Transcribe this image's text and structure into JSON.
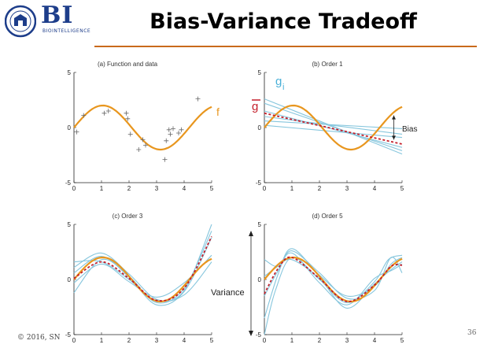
{
  "header": {
    "logo_text": "BI",
    "logo_sub": "BIOINTELLIGENCE",
    "title": "Bias-Variance Tradeoff"
  },
  "footer": {
    "copyright": "© 2016, SN",
    "page_number": "36"
  },
  "colors": {
    "true_function": "#e8961e",
    "fits": "#86c6dd",
    "mean_fit": "#c41e2a",
    "rule": "#c96a1b",
    "logo": "#1d3d8a"
  },
  "annotations": {
    "f": "f",
    "g_i": "g",
    "g_i_sub": "i",
    "g_bar": "g",
    "bias": "Bias",
    "variance": "Variance"
  },
  "chart_data": [
    {
      "type": "scatter",
      "title": "(a) Function and data",
      "xlim": [
        0,
        5
      ],
      "ylim": [
        -5,
        5
      ],
      "xticks": [
        "0",
        "1",
        "2",
        "3",
        "4",
        "5"
      ],
      "yticks": [
        "5",
        "0",
        "-5"
      ],
      "true_function": "2*sin(1.5*x)",
      "points": [
        [
          0.1,
          -0.4
        ],
        [
          0.35,
          1.1
        ],
        [
          1.1,
          1.3
        ],
        [
          1.25,
          1.5
        ],
        [
          1.9,
          1.3
        ],
        [
          1.95,
          0.8
        ],
        [
          2.05,
          -0.6
        ],
        [
          2.35,
          -2.0
        ],
        [
          2.5,
          -1.1
        ],
        [
          2.6,
          -1.6
        ],
        [
          3.3,
          -2.9
        ],
        [
          3.35,
          -1.2
        ],
        [
          3.45,
          -0.2
        ],
        [
          3.5,
          -0.6
        ],
        [
          3.6,
          -0.1
        ],
        [
          3.8,
          -0.5
        ],
        [
          3.9,
          -0.2
        ],
        [
          4.5,
          2.6
        ]
      ]
    },
    {
      "type": "line",
      "title": "(b) Order 1",
      "xlim": [
        0,
        5
      ],
      "ylim": [
        -5,
        5
      ],
      "xticks": [
        "0",
        "1",
        "2",
        "3",
        "4",
        "5"
      ],
      "yticks": [
        "5",
        "0",
        "-5"
      ],
      "fits": [
        [
          [
            0,
            2.6
          ],
          [
            5,
            -2.4
          ]
        ],
        [
          [
            0,
            1.5
          ],
          [
            5,
            -1.8
          ]
        ],
        [
          [
            0,
            1.0
          ],
          [
            5,
            -0.6
          ]
        ],
        [
          [
            0,
            0.6
          ],
          [
            5,
            -0.1
          ]
        ],
        [
          [
            0,
            2.2
          ],
          [
            5,
            -2.1
          ]
        ],
        [
          [
            0,
            0.2
          ],
          [
            5,
            -0.9
          ]
        ]
      ],
      "mean_fit": [
        [
          0,
          1.3
        ],
        [
          5,
          -1.5
        ]
      ]
    },
    {
      "type": "line",
      "title": "(c) Order 3",
      "xlim": [
        0,
        5
      ],
      "ylim": [
        -5,
        5
      ],
      "xticks": [
        "0",
        "1",
        "2",
        "3",
        "4",
        "5"
      ],
      "yticks": [
        "5",
        "0",
        "-5"
      ],
      "fits": [
        [
          [
            0,
            1.6
          ],
          [
            1,
            1.6
          ],
          [
            2,
            0
          ],
          [
            3,
            -1.9
          ],
          [
            4,
            -1.0
          ],
          [
            5,
            5.0
          ]
        ],
        [
          [
            0,
            -1.2
          ],
          [
            1,
            1.8
          ],
          [
            2,
            0.3
          ],
          [
            3,
            -2.1
          ],
          [
            4,
            -0.8
          ],
          [
            5,
            4.4
          ]
        ],
        [
          [
            0,
            0.6
          ],
          [
            1,
            2.1
          ],
          [
            2,
            0.2
          ],
          [
            3,
            -2.3
          ],
          [
            4,
            -1.1
          ],
          [
            5,
            3.8
          ]
        ],
        [
          [
            0,
            -0.3
          ],
          [
            1,
            1.4
          ],
          [
            2,
            -0.2
          ],
          [
            3,
            -1.6
          ],
          [
            4,
            -0.3
          ],
          [
            5,
            2.2
          ]
        ],
        [
          [
            0,
            1.1
          ],
          [
            1,
            2.4
          ],
          [
            2,
            0.5
          ],
          [
            3,
            -1.8
          ],
          [
            4,
            -1.4
          ],
          [
            5,
            1.6
          ]
        ]
      ],
      "mean_fit": [
        [
          0,
          0.1
        ],
        [
          1,
          1.6
        ],
        [
          2,
          0.1
        ],
        [
          3,
          -1.9
        ],
        [
          4,
          -0.8
        ],
        [
          5,
          3.9
        ]
      ]
    },
    {
      "type": "line",
      "title": "(d) Order 5",
      "xlim": [
        0,
        5
      ],
      "ylim": [
        -5,
        5
      ],
      "xticks": [
        "0",
        "1",
        "2",
        "3",
        "4",
        "5"
      ],
      "yticks": [
        "5",
        "0",
        "-5"
      ],
      "fits": [
        [
          [
            0,
            -5.0
          ],
          [
            0.4,
            -1.0
          ],
          [
            1,
            2.0
          ],
          [
            2,
            0
          ],
          [
            3,
            -2.1
          ],
          [
            4,
            -0.2
          ],
          [
            4.5,
            1.8
          ],
          [
            5,
            2.2
          ]
        ],
        [
          [
            0,
            0.3
          ],
          [
            0.5,
            1.2
          ],
          [
            1,
            1.8
          ],
          [
            2,
            0.1
          ],
          [
            3,
            -2.6
          ],
          [
            4,
            -0.4
          ],
          [
            4.6,
            0.9
          ],
          [
            5,
            1.6
          ]
        ],
        [
          [
            0,
            1.8
          ],
          [
            0.5,
            1.2
          ],
          [
            1,
            2.6
          ],
          [
            2,
            0.6
          ],
          [
            3,
            -1.7
          ],
          [
            4,
            -1.0
          ],
          [
            4.6,
            2.0
          ],
          [
            5,
            0.6
          ]
        ],
        [
          [
            0,
            -1.5
          ],
          [
            0.5,
            0.8
          ],
          [
            1,
            2.4
          ],
          [
            2,
            -0.3
          ],
          [
            3,
            -2.3
          ],
          [
            4,
            0.1
          ],
          [
            4.6,
            0.8
          ],
          [
            5,
            1.4
          ]
        ],
        [
          [
            0,
            -3.5
          ],
          [
            0.5,
            0.5
          ],
          [
            1,
            2.8
          ],
          [
            2,
            0.4
          ],
          [
            3,
            -1.5
          ],
          [
            4,
            -0.6
          ],
          [
            4.6,
            1.4
          ],
          [
            5,
            2.0
          ]
        ]
      ],
      "mean_fit": [
        [
          0,
          -1.3
        ],
        [
          0.5,
          1.0
        ],
        [
          1,
          2.0
        ],
        [
          2,
          0.1
        ],
        [
          3,
          -2.0
        ],
        [
          4,
          -0.5
        ],
        [
          4.6,
          1.2
        ],
        [
          5,
          1.3
        ]
      ]
    }
  ]
}
